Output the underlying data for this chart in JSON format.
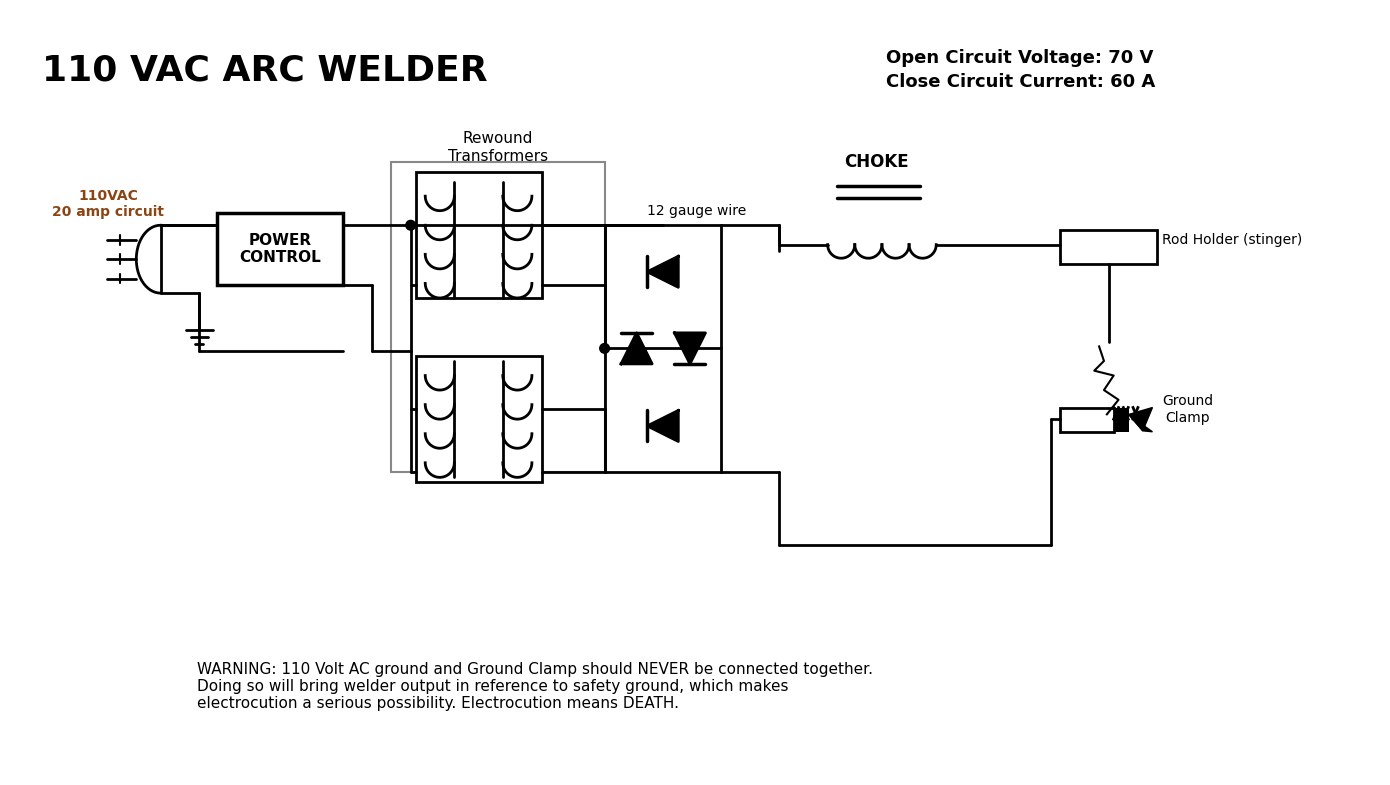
{
  "title": "110 VAC ARC WELDER",
  "subtitle1": "Open Circuit Voltage: 70 V",
  "subtitle2": "Close Circuit Current: 60 A",
  "warning": "WARNING: 110 Volt AC ground and Ground Clamp should NEVER be connected together.\nDoing so will bring welder output in reference to safety ground, which makes\nelectrocution a serious possibility. Electrocution means DEATH.",
  "label_110vac": "110VAC\n20 amp circuit",
  "label_power": "POWER\nCONTROL",
  "label_rewound": "Rewound\nTransformers",
  "label_12gauge": "12 gauge wire",
  "label_choke": "CHOKE",
  "label_rod": "Rod Holder (stinger)",
  "label_ground": "Ground\nClamp",
  "bg_color": "#ffffff",
  "line_color": "#000000",
  "gray_color": "#888888",
  "title_color": "#000000",
  "warning_color": "#000000"
}
